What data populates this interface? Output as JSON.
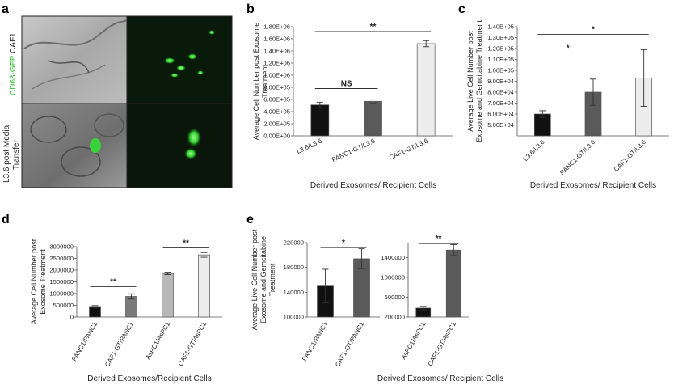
{
  "panel_letters": [
    "a",
    "b",
    "c",
    "d",
    "e"
  ],
  "micro": {
    "label_top_green": "CD63-GFP",
    "label_top_black": " CAF1",
    "label_bottom_line1": "L3.6 post Media",
    "label_bottom_line2": "Transfer"
  },
  "colors": {
    "black": "#111111",
    "dark": "#5a5a5a",
    "mid": "#7a7a7a",
    "light": "#b8b8b8",
    "white": "#ececec",
    "green": "#2fbf2f"
  },
  "chart_data": [
    {
      "id": "b",
      "type": "bar",
      "categories": [
        "L3.6/L3.6",
        "PANC1-GT/L3.6",
        "CAF1-GT/L3.6"
      ],
      "values": [
        510000,
        570000,
        1520000
      ],
      "errors": [
        45000,
        35000,
        50000
      ],
      "fills": [
        "black",
        "dark",
        "white"
      ],
      "ylim": [
        0,
        1800000
      ],
      "yticks": [
        0,
        200000,
        400000,
        600000,
        800000,
        1000000,
        1200000,
        1400000,
        1600000,
        1800000
      ],
      "ytick_labels": [
        "0.00E+00",
        "2.00E+05",
        "4.00E+05",
        "6.00E+05",
        "8.00E+05",
        "1.00E+06",
        "1.20E+06",
        "1.40E+06",
        "1.60E+06",
        "1.80E+06"
      ],
      "ylabel_lines": [
        "Average Cell Number post Exosome",
        "Treatment"
      ],
      "xlabel": "Derived Exosomes/ Recipient Cells",
      "annotations": [
        {
          "from": 0,
          "to": 1,
          "y": 780000,
          "text": "NS"
        },
        {
          "from": 0,
          "to": 2,
          "y": 1720000,
          "text": "**"
        }
      ]
    },
    {
      "id": "c",
      "type": "bar",
      "categories": [
        "L3.6/L3.6",
        "PANC1-GT/L3.6",
        "CAF1-GT/L3.6"
      ],
      "values": [
        60000,
        80000,
        93000
      ],
      "errors": [
        3000,
        12000,
        26000
      ],
      "fills": [
        "black",
        "dark",
        "white"
      ],
      "ylim": [
        40000,
        140000
      ],
      "yticks": [
        50000,
        60000,
        70000,
        80000,
        90000,
        100000,
        110000,
        120000,
        130000,
        140000
      ],
      "ytick_labels": [
        "5.00E+04",
        "6.00E+04",
        "7.00E+04",
        "8.00E+04",
        "9.00E+04",
        "1.00E+05",
        "1.10E+05",
        "1.20E+05",
        "1.30E+05",
        "1.40E+05"
      ],
      "ylabel_lines": [
        "Average Live Cell Number post",
        "Exosome and Gemcitabine Treatment"
      ],
      "xlabel": "Derived Exosomes/ Recipient Cells",
      "annotations": [
        {
          "from": 0,
          "to": 1,
          "y": 116000,
          "text": "*"
        },
        {
          "from": 0,
          "to": 2,
          "y": 133000,
          "text": "*"
        }
      ]
    },
    {
      "id": "d",
      "type": "bar",
      "categories": [
        "PANC1/PANC1",
        "CAF1-GT/PANC1",
        "AsPC1/AsPC1",
        "CAF1-GT/AsPC1"
      ],
      "values": [
        450000,
        880000,
        1860000,
        2650000
      ],
      "errors": [
        40000,
        110000,
        50000,
        100000
      ],
      "fills": [
        "black",
        "mid",
        "light",
        "white"
      ],
      "ylim": [
        0,
        3000000
      ],
      "yticks": [
        0,
        500000,
        1000000,
        1500000,
        2000000,
        2500000,
        3000000
      ],
      "ytick_labels": [
        "0",
        "500000",
        "1000000",
        "1500000",
        "2000000",
        "2500000",
        "3000000"
      ],
      "ylabel_lines": [
        "Average Cell Number post",
        "Exosome Treatment"
      ],
      "xlabel": "Derived Exosomes/Recipient Cells",
      "annotations": [
        {
          "from": 0,
          "to": 1,
          "y": 1290000,
          "text": "**"
        },
        {
          "from": 2,
          "to": 3,
          "y": 2950000,
          "text": "**"
        }
      ]
    },
    {
      "id": "e1",
      "type": "bar",
      "categories": [
        "PANC1/PANC1",
        "CAF1-GT/PANC1"
      ],
      "values": [
        150000,
        194000
      ],
      "errors": [
        27000,
        16000
      ],
      "fills": [
        "black",
        "dark"
      ],
      "ylim": [
        100000,
        220000
      ],
      "yticks": [
        100000,
        140000,
        180000,
        220000
      ],
      "ytick_labels": [
        "100000",
        "140000",
        "180000",
        "220000"
      ],
      "ylabel_lines": [
        "Average Live Cell Number post",
        "Exosome and Gemcitabine",
        "Treatment"
      ],
      "xlabel": "",
      "annotations": [
        {
          "from": 0,
          "to": 1,
          "y": 212000,
          "text": "*"
        }
      ]
    },
    {
      "id": "e2",
      "type": "bar",
      "categories": [
        "AsPC1/AsPC1",
        "CAF1-GT/AsPC1"
      ],
      "values": [
        380000,
        1550000
      ],
      "errors": [
        35000,
        110000
      ],
      "fills": [
        "black",
        "dark"
      ],
      "ylim": [
        200000,
        1700000
      ],
      "yticks": [
        200000,
        600000,
        1000000,
        1400000
      ],
      "ytick_labels": [
        "200000",
        "600000",
        "1000000",
        "1400000"
      ],
      "ylabel_lines": [],
      "xlabel": "",
      "annotations": [
        {
          "from": 0,
          "to": 1,
          "y": 1680000,
          "text": "**"
        }
      ]
    }
  ],
  "e_xlabel": "Derived Exosomes/ Recipient Cells"
}
